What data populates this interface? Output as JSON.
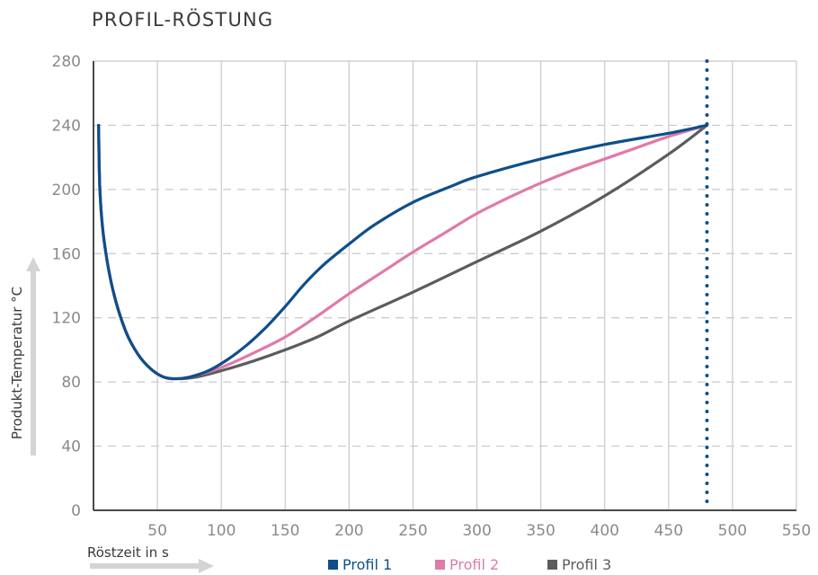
{
  "colors": {
    "profil1": "#0d4f8b",
    "profil2": "#e07aa8",
    "profil3": "#5c5c5c",
    "grid": "#c8c8c8",
    "axis": "#4a4a4a",
    "arrow": "#d4d4d4",
    "marker": "#0d4f8b"
  },
  "chart_data": {
    "type": "line",
    "title": "PROFIL-RÖSTUNG",
    "xlabel": "Röstzeit in s",
    "ylabel": "Produkt-Temperatur °C",
    "xlim": [
      0,
      550
    ],
    "ylim": [
      0,
      280
    ],
    "x_ticks": [
      50,
      100,
      150,
      200,
      250,
      300,
      350,
      400,
      450,
      500,
      550
    ],
    "y_ticks": [
      0,
      40,
      80,
      120,
      160,
      200,
      240,
      280
    ],
    "vertical_grid": true,
    "horizontal_grid": "dashed",
    "legend_position": "bottom",
    "end_marker_x": 480,
    "series": [
      {
        "name": "Profil 1",
        "color_key": "profil1",
        "points": [
          [
            4,
            240
          ],
          [
            5,
            200
          ],
          [
            8,
            170
          ],
          [
            15,
            138
          ],
          [
            25,
            112
          ],
          [
            35,
            97
          ],
          [
            45,
            88
          ],
          [
            55,
            83
          ],
          [
            65,
            82
          ],
          [
            75,
            83
          ],
          [
            90,
            87
          ],
          [
            105,
            94
          ],
          [
            120,
            103
          ],
          [
            135,
            114
          ],
          [
            150,
            127
          ],
          [
            165,
            141
          ],
          [
            180,
            153
          ],
          [
            200,
            166
          ],
          [
            220,
            178
          ],
          [
            250,
            192
          ],
          [
            280,
            202
          ],
          [
            300,
            208
          ],
          [
            350,
            219
          ],
          [
            400,
            228
          ],
          [
            450,
            235
          ],
          [
            480,
            240
          ]
        ]
      },
      {
        "name": "Profil 2",
        "color_key": "profil2",
        "points": [
          [
            4,
            240
          ],
          [
            5,
            200
          ],
          [
            8,
            170
          ],
          [
            15,
            138
          ],
          [
            25,
            112
          ],
          [
            35,
            97
          ],
          [
            45,
            88
          ],
          [
            55,
            83
          ],
          [
            65,
            82
          ],
          [
            80,
            84
          ],
          [
            100,
            89
          ],
          [
            125,
            98
          ],
          [
            150,
            108
          ],
          [
            175,
            121
          ],
          [
            200,
            135
          ],
          [
            225,
            148
          ],
          [
            250,
            161
          ],
          [
            275,
            173
          ],
          [
            300,
            185
          ],
          [
            325,
            195
          ],
          [
            350,
            204
          ],
          [
            375,
            212
          ],
          [
            400,
            219
          ],
          [
            425,
            226
          ],
          [
            450,
            233
          ],
          [
            480,
            240
          ]
        ]
      },
      {
        "name": "Profil 3",
        "color_key": "profil3",
        "points": [
          [
            4,
            240
          ],
          [
            5,
            200
          ],
          [
            8,
            170
          ],
          [
            15,
            138
          ],
          [
            25,
            112
          ],
          [
            35,
            97
          ],
          [
            45,
            88
          ],
          [
            55,
            83
          ],
          [
            65,
            82
          ],
          [
            80,
            83
          ],
          [
            100,
            87
          ],
          [
            125,
            93
          ],
          [
            150,
            100
          ],
          [
            175,
            108
          ],
          [
            200,
            118
          ],
          [
            250,
            136
          ],
          [
            300,
            155
          ],
          [
            350,
            174
          ],
          [
            400,
            196
          ],
          [
            450,
            222
          ],
          [
            480,
            240
          ]
        ]
      }
    ]
  }
}
